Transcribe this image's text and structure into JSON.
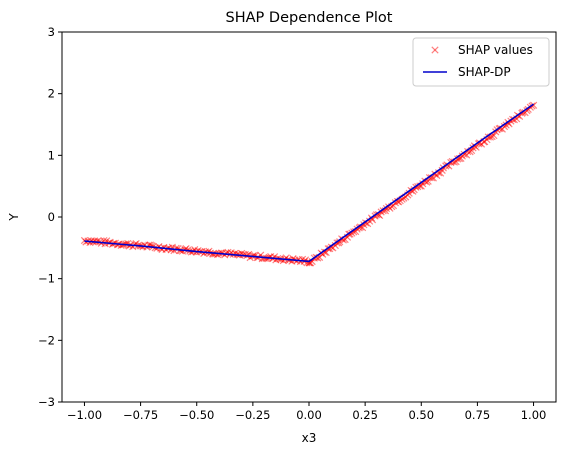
{
  "chart_data": {
    "type": "scatter",
    "title": "SHAP Dependence Plot",
    "xlabel": "x3",
    "ylabel": "Y",
    "xlim": [
      -1.1,
      1.1
    ],
    "ylim": [
      -3,
      3
    ],
    "x_ticks": [
      -1.0,
      -0.75,
      -0.5,
      -0.25,
      0.0,
      0.25,
      0.5,
      0.75,
      1.0
    ],
    "x_tick_labels": [
      "−1.00",
      "−0.75",
      "−0.50",
      "−0.25",
      "0.00",
      "0.25",
      "0.50",
      "0.75",
      "1.00"
    ],
    "y_ticks": [
      -3,
      -2,
      -1,
      0,
      1,
      2,
      3
    ],
    "y_tick_labels": [
      "−3",
      "−2",
      "−1",
      "0",
      "1",
      "2",
      "3"
    ],
    "grid": false,
    "legend_position": "top-right",
    "series": [
      {
        "name": "SHAP values",
        "kind": "marker-x",
        "color": "#ff0000",
        "alpha": 0.5,
        "segments": [
          {
            "x_range": [
              -1.0,
              0.0
            ],
            "y_start": -0.38,
            "y_end": -0.72
          },
          {
            "x_range": [
              0.0,
              1.0
            ],
            "y_start": -0.75,
            "y_end": 1.8
          }
        ],
        "noise": 0.03
      },
      {
        "name": "SHAP-DP",
        "kind": "line",
        "color": "#0000cc",
        "x": [
          -1.0,
          -0.75,
          -0.5,
          -0.25,
          0.0,
          0.25,
          0.5,
          0.75,
          1.0
        ],
        "y": [
          -0.39,
          -0.47,
          -0.56,
          -0.64,
          -0.72,
          -0.08,
          0.56,
          1.2,
          1.83
        ]
      }
    ]
  }
}
